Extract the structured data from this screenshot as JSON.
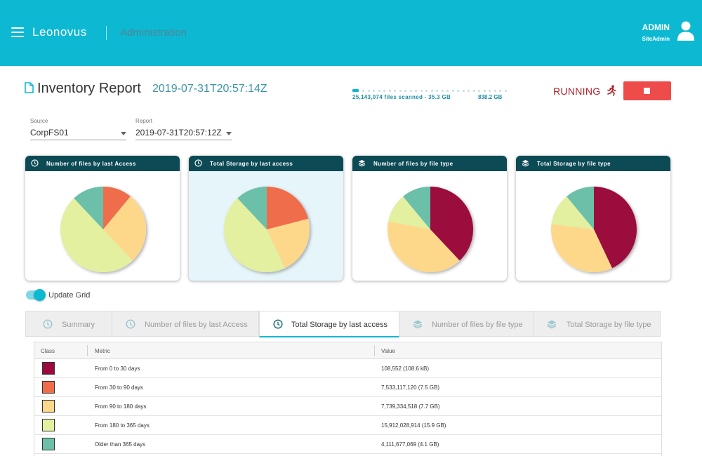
{
  "header": {
    "brand": "Leonovus",
    "section": "Administration",
    "user_name": "ADMIN",
    "user_role": "SiteAdmin",
    "color": "#0db8d3"
  },
  "report": {
    "title": "Inventory Report",
    "timestamp": "2019-07-31T20:57:14Z",
    "files_scanned": "25,143,074 files scanned - 35.3 GB",
    "total_size": "838.2 GB",
    "progress": 0.04,
    "status": "RUNNING",
    "stop_color": "#ee4b4b"
  },
  "filters": {
    "source_label": "Source",
    "source_value": "CorpFS01",
    "report_label": "Report",
    "report_value": "2019-07-31T20:57:12Z"
  },
  "colors": {
    "c1": "#9b0a3e",
    "c2": "#f06d4b",
    "c3": "#fed88a",
    "c4": "#e2f0a0",
    "c5": "#6cbfa9"
  },
  "cards": [
    {
      "title": "Number of files by last Access",
      "icon": "clock-icon",
      "slices": [
        0.0,
        0.11,
        0.27,
        0.5,
        0.12
      ]
    },
    {
      "title": "Total Storage by last access",
      "icon": "clock-icon",
      "slices": [
        0.0,
        0.21,
        0.22,
        0.45,
        0.12
      ]
    },
    {
      "title": "Number of files by file type",
      "icon": "layers-icon",
      "slices": [
        0.38,
        0.0,
        0.4,
        0.11,
        0.11
      ]
    },
    {
      "title": "Total Storage by file type",
      "icon": "layers-icon",
      "slices": [
        0.43,
        0.0,
        0.34,
        0.12,
        0.11
      ]
    }
  ],
  "toggle": {
    "label": "Update Grid",
    "on": true
  },
  "tabs": [
    {
      "label": "Summary",
      "icon": "clock-icon"
    },
    {
      "label": "Number of files by last Access",
      "icon": "clock-icon"
    },
    {
      "label": "Total Storage by last access",
      "icon": "clock-icon"
    },
    {
      "label": "Number of files by file type",
      "icon": "layers-icon"
    },
    {
      "label": "Total Storage by file type",
      "icon": "layers-icon"
    }
  ],
  "grid": {
    "columns": [
      "Class",
      "Metric",
      "Value"
    ],
    "rows": [
      {
        "color": "#9b0a3e",
        "metric": "From 0 to 30 days",
        "value": "108,552 (108.6 kB)"
      },
      {
        "color": "#f06d4b",
        "metric": "From 30 to 90 days",
        "value": "7,533,117,120 (7.5 GB)"
      },
      {
        "color": "#fed88a",
        "metric": "From 90 to 180 days",
        "value": "7,739,334,518 (7.7 GB)"
      },
      {
        "color": "#e2f0a0",
        "metric": "From 180 to 365 days",
        "value": "15,912,028,914 (15.9 GB)"
      },
      {
        "color": "#6cbfa9",
        "metric": "Older than 365 days",
        "value": "4,111,677,069 (4.1 GB)"
      }
    ]
  }
}
